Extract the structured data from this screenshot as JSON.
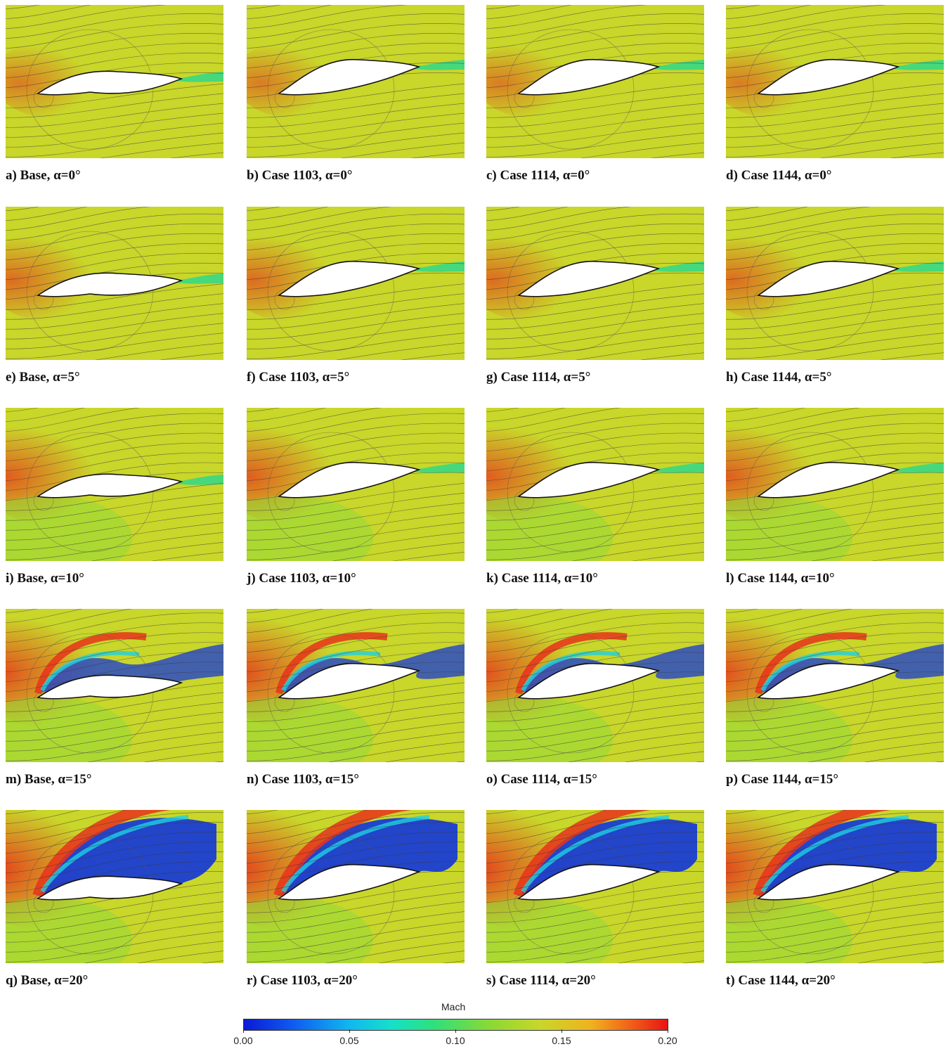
{
  "panels": [
    {
      "label": "a) Base, α=0°",
      "alpha": 0
    },
    {
      "label": "b) Case 1103, α=0°",
      "alpha": 0
    },
    {
      "label": "c) Case 1114, α=0°",
      "alpha": 0
    },
    {
      "label": "d) Case 1144, α=0°",
      "alpha": 0
    },
    {
      "label": "e) Base, α=5°",
      "alpha": 5
    },
    {
      "label": "f) Case 1103, α=5°",
      "alpha": 5
    },
    {
      "label": "g) Case 1114, α=5°",
      "alpha": 5
    },
    {
      "label": "h) Case 1144, α=5°",
      "alpha": 5
    },
    {
      "label": "i) Base, α=10°",
      "alpha": 10
    },
    {
      "label": "j) Case 1103, α=10°",
      "alpha": 10
    },
    {
      "label": "k) Case 1114, α=10°",
      "alpha": 10
    },
    {
      "label": "l) Case 1144, α=10°",
      "alpha": 10
    },
    {
      "label": "m) Base, α=15°",
      "alpha": 15
    },
    {
      "label": "n) Case 1103, α=15°",
      "alpha": 15
    },
    {
      "label": "o) Case 1114, α=15°",
      "alpha": 15
    },
    {
      "label": "p) Case 1144, α=15°",
      "alpha": 15
    },
    {
      "label": "q) Base, α=20°",
      "alpha": 20
    },
    {
      "label": "r) Case 1103, α=20°",
      "alpha": 20
    },
    {
      "label": "s) Case 1114, α=20°",
      "alpha": 20
    },
    {
      "label": "t) Case 1144, α=20°",
      "alpha": 20
    }
  ],
  "colorbar": {
    "title": "Mach",
    "ticks": [
      "0.00",
      "0.05",
      "0.10",
      "0.15",
      "0.20"
    ],
    "min": 0.0,
    "max": 0.2
  },
  "colors": {
    "freestream": "#c9d62a",
    "high": "#e8321a",
    "low": "#1438d8",
    "wake": "#2fd88a",
    "streamline": "#3a3a3a"
  }
}
